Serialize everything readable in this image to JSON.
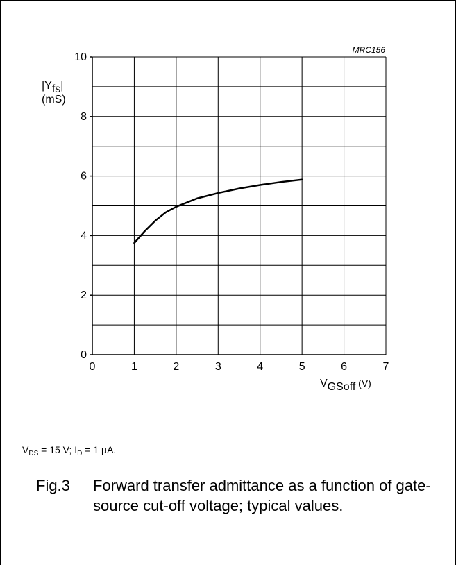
{
  "figure_id": "MRC156",
  "y_axis_label": {
    "symbol": "|Y",
    "subscript": "fs",
    "close": "|",
    "unit": "(mS)"
  },
  "x_axis_label": {
    "symbol": "V",
    "subscript": "GSoff",
    "unit": " (V)"
  },
  "conditions": {
    "v_symbol": "V",
    "v_sub": "DS",
    "v_value": " = 15 V; ",
    "i_symbol": "I",
    "i_sub": "D",
    "i_value": " = 1 µA."
  },
  "caption": {
    "label": "Fig.3",
    "text": "Forward transfer admittance as a function of gate-source cut-off voltage; typical values."
  },
  "chart_data": {
    "type": "line",
    "xlabel": "VGSoff (V)",
    "ylabel": "|Yfs| (mS)",
    "xlim": [
      0,
      7
    ],
    "ylim": [
      0,
      10
    ],
    "x_ticks": [
      0,
      1,
      2,
      3,
      4,
      5,
      6,
      7
    ],
    "y_ticks": [
      0,
      2,
      4,
      6,
      8,
      10
    ],
    "grid": true,
    "series": [
      {
        "x": [
          1.0,
          1.25,
          1.5,
          1.75,
          2.0,
          2.5,
          3.0,
          3.5,
          4.0,
          4.5,
          5.0
        ],
        "y": [
          3.75,
          4.15,
          4.5,
          4.78,
          4.97,
          5.25,
          5.43,
          5.58,
          5.7,
          5.8,
          5.88
        ]
      }
    ]
  }
}
